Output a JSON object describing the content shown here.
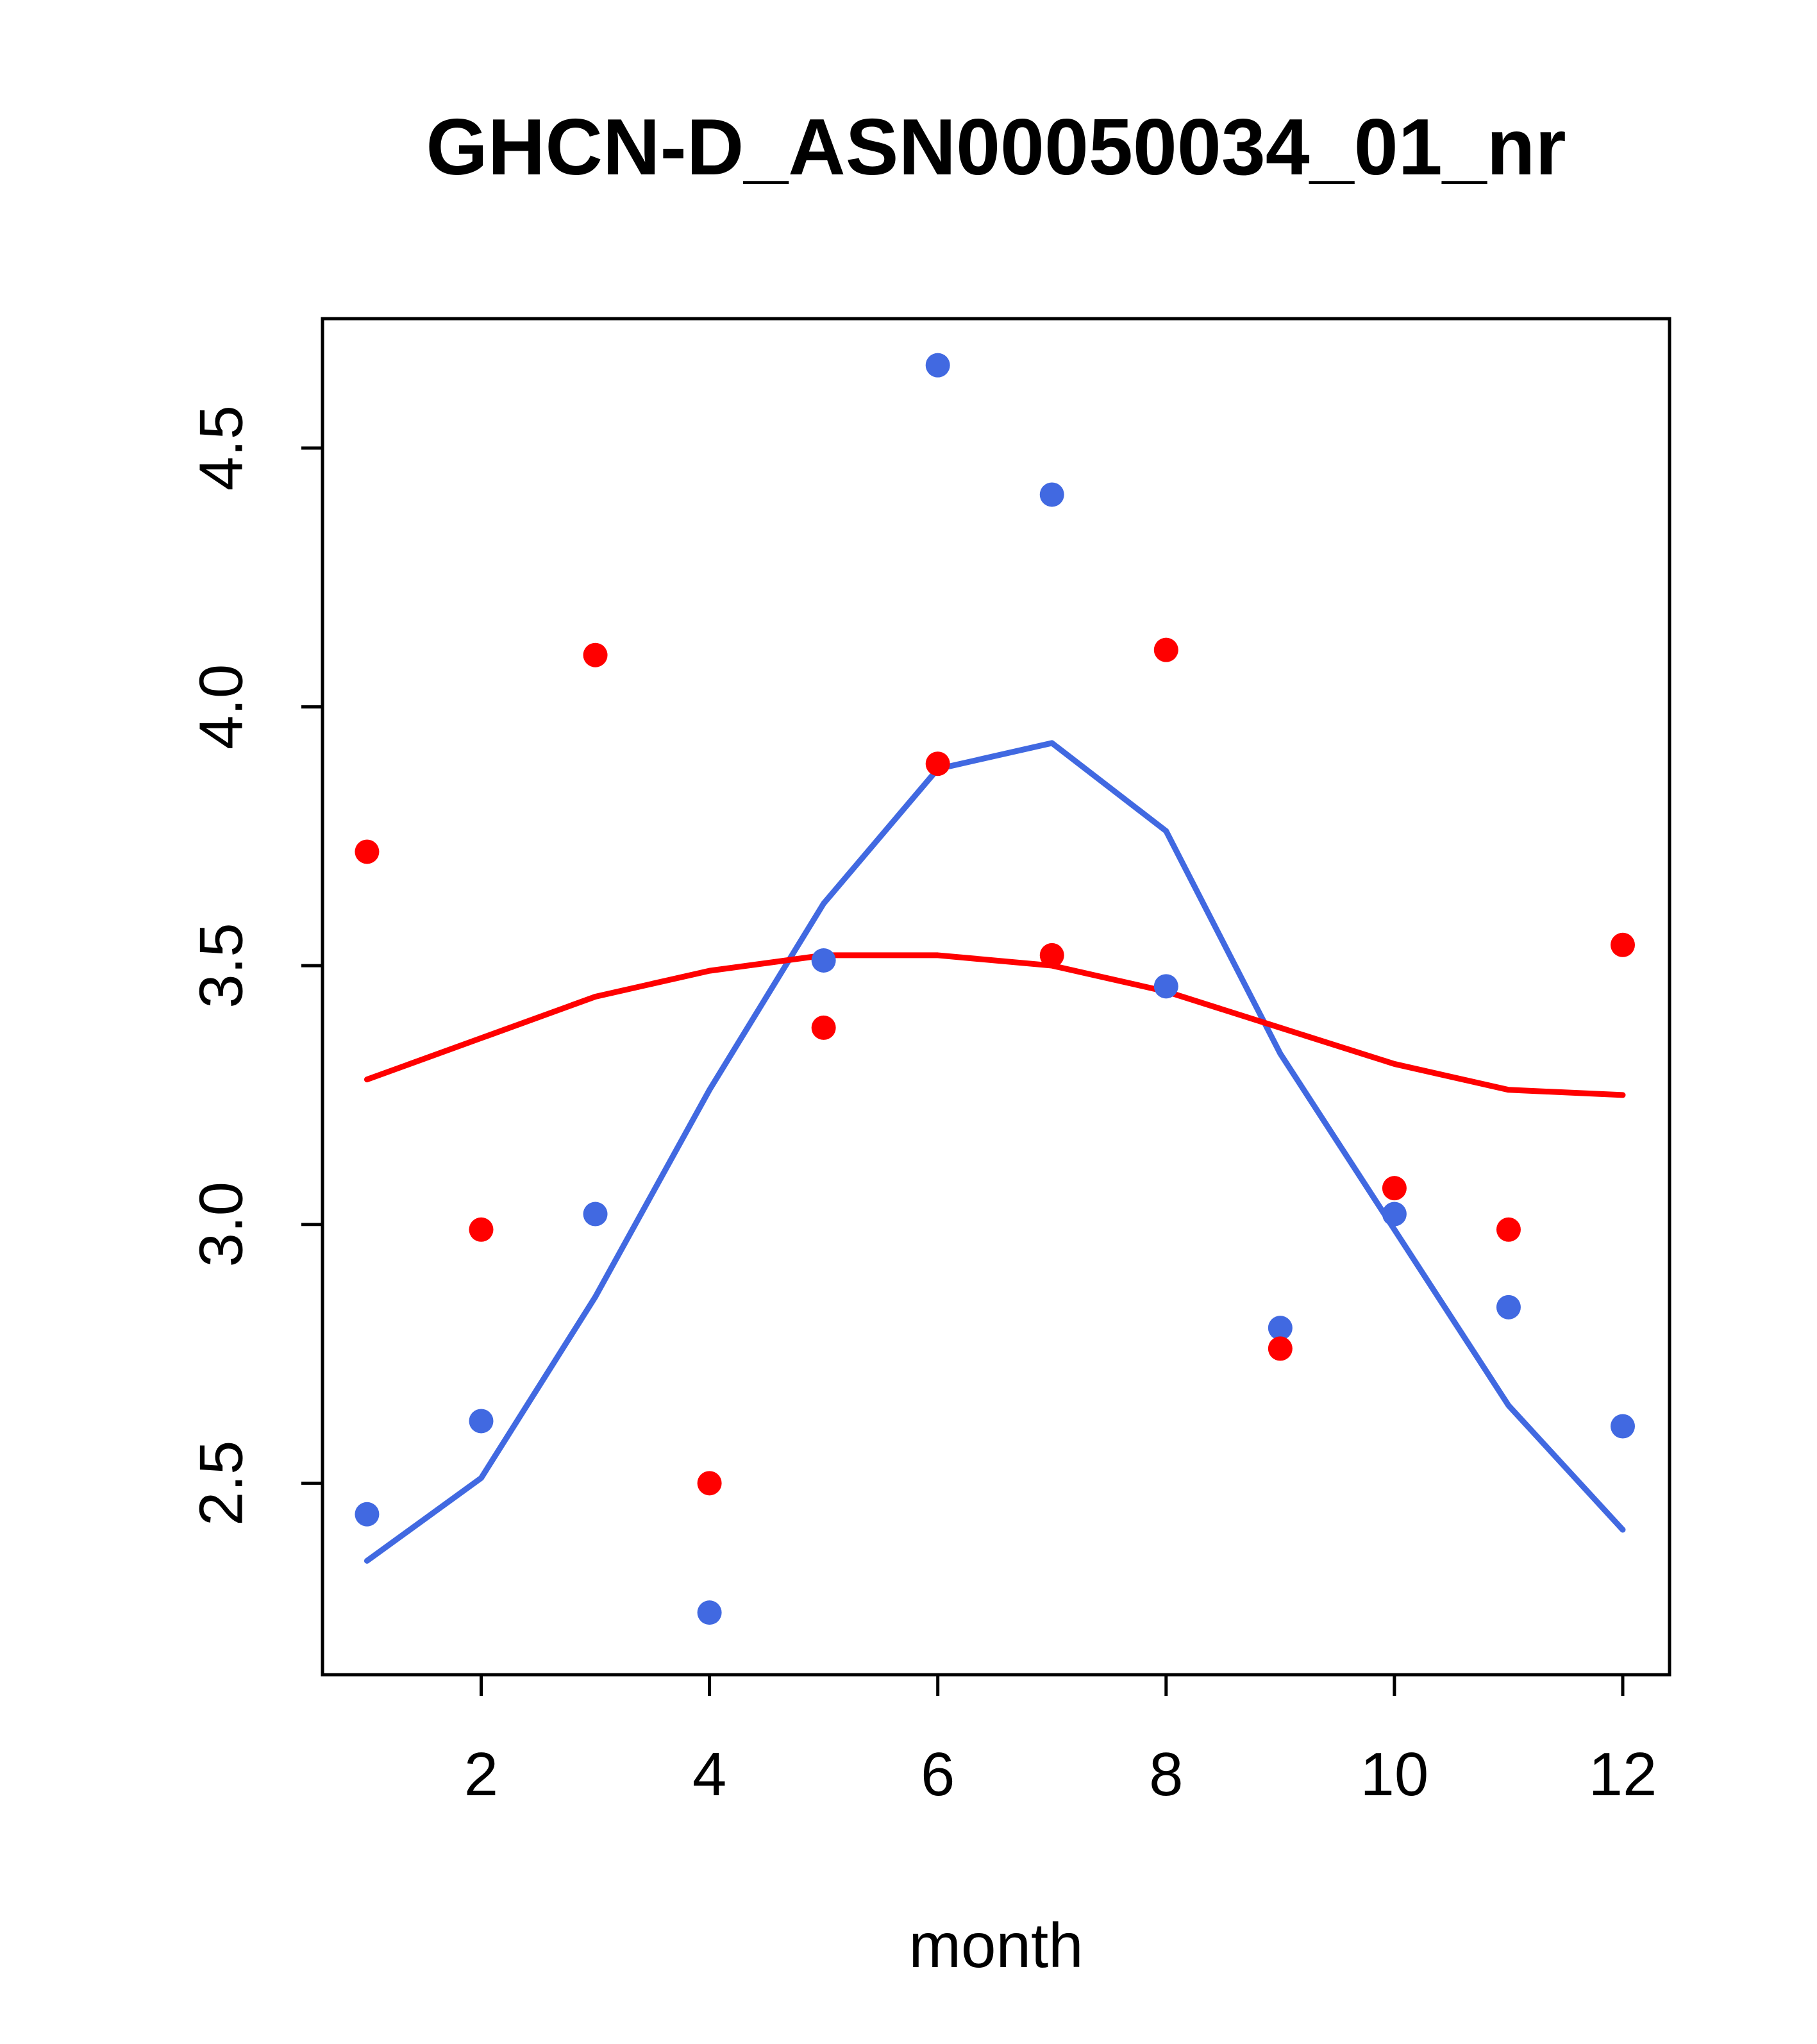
{
  "chart_data": {
    "type": "scatter",
    "title": "GHCN-D_ASN00050034_01_nr",
    "xlabel": "month",
    "ylabel": "",
    "x": [
      1,
      2,
      3,
      4,
      5,
      6,
      7,
      8,
      9,
      10,
      11,
      12
    ],
    "series": [
      {
        "name": "blue-smooth-line",
        "kind": "line",
        "color": "#4169E1",
        "values": [
          2.35,
          2.51,
          2.86,
          3.26,
          3.62,
          3.88,
          3.93,
          3.76,
          3.33,
          2.99,
          2.65,
          2.41
        ]
      },
      {
        "name": "red-smooth-line",
        "kind": "line",
        "color": "#FF0000",
        "values": [
          3.28,
          3.36,
          3.44,
          3.49,
          3.52,
          3.52,
          3.5,
          3.45,
          3.38,
          3.31,
          3.26,
          3.25
        ]
      },
      {
        "name": "blue-points",
        "kind": "points",
        "color": "#4169E1",
        "values": [
          2.44,
          2.62,
          3.02,
          2.25,
          3.51,
          4.66,
          4.41,
          3.46,
          2.8,
          3.02,
          2.84,
          2.61
        ]
      },
      {
        "name": "red-points",
        "kind": "points",
        "color": "#FF0000",
        "values": [
          3.72,
          2.99,
          4.1,
          2.5,
          3.38,
          3.89,
          3.52,
          4.11,
          2.76,
          3.07,
          2.99,
          3.54
        ]
      }
    ],
    "x_ticks": {
      "values": [
        2,
        4,
        6,
        8,
        10,
        12
      ],
      "labels": [
        "2",
        "4",
        "6",
        "8",
        "10",
        "12"
      ]
    },
    "y_ticks": {
      "values": [
        2.5,
        3.0,
        3.5,
        4.0,
        4.5
      ],
      "labels": [
        "2.5",
        "3.0",
        "3.5",
        "4.0",
        "4.5"
      ]
    },
    "xlim": [
      0.61,
      12.41
    ],
    "ylim": [
      2.13,
      4.75
    ],
    "grid": false,
    "legend": "none",
    "colors": {
      "blue": "#4169E1",
      "red": "#FF0000",
      "axis": "#000000",
      "background": "#ffffff"
    }
  }
}
